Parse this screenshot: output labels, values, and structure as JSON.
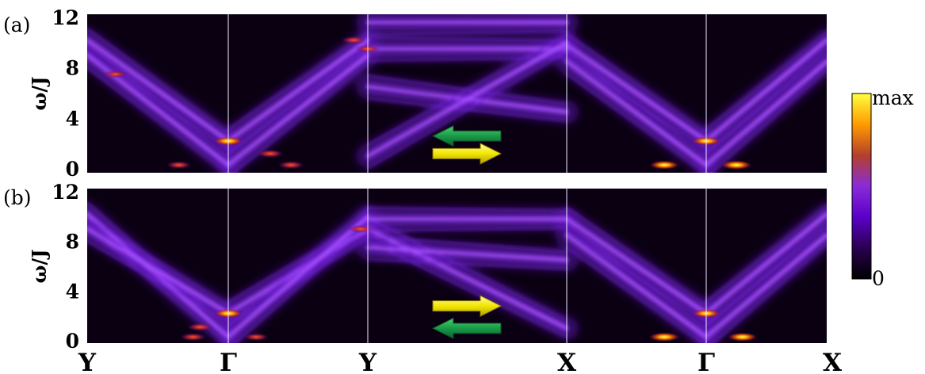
{
  "chart_data": [
    {
      "type": "heatmap",
      "panel_label": "(a)",
      "ylabel": "ω/J",
      "yticks": [
        0,
        4,
        8,
        12
      ],
      "ylim": [
        0,
        12
      ],
      "x_points": [
        "Y",
        "Γ",
        "Y",
        "X",
        "Γ",
        "X"
      ],
      "branches": [
        {
          "from": 0,
          "to": 1,
          "w": [
            9.0,
            0.3
          ]
        },
        {
          "from": 0,
          "to": 1,
          "w": [
            10.2,
            2.2
          ]
        },
        {
          "from": 1,
          "to": 2,
          "w": [
            2.2,
            10.2
          ]
        },
        {
          "from": 1,
          "to": 2,
          "w": [
            0.3,
            9.0
          ]
        },
        {
          "from": 2,
          "to": 3,
          "w": [
            11.6,
            11.6
          ]
        },
        {
          "from": 2,
          "to": 3,
          "w": [
            9.5,
            9.5
          ]
        },
        {
          "from": 2,
          "to": 3,
          "w": [
            6.5,
            4.5
          ]
        },
        {
          "from": 2,
          "to": 3,
          "w": [
            1.0,
            10.0
          ]
        },
        {
          "from": 3,
          "to": 4,
          "w": [
            9.8,
            2.2
          ]
        },
        {
          "from": 3,
          "to": 4,
          "w": [
            8.5,
            0.3
          ]
        },
        {
          "from": 4,
          "to": 5,
          "w": [
            2.2,
            10.2
          ]
        },
        {
          "from": 4,
          "to": 5,
          "w": [
            0.3,
            8.5
          ]
        }
      ],
      "hotspots": [
        {
          "k": 1.0,
          "w": 2.2,
          "level": 0.85
        },
        {
          "k": 1.3,
          "w": 1.2,
          "level": 0.6
        },
        {
          "k": 1.45,
          "w": 0.3,
          "level": 0.55
        },
        {
          "k": 0.65,
          "w": 0.3,
          "level": 0.45
        },
        {
          "k": 4.0,
          "w": 2.2,
          "level": 0.8
        },
        {
          "k": 3.7,
          "w": 0.3,
          "level": 0.85
        },
        {
          "k": 4.25,
          "w": 0.3,
          "level": 0.95
        },
        {
          "k": 0.2,
          "w": 7.5,
          "level": 0.4
        },
        {
          "k": 1.9,
          "w": 10.2,
          "level": 0.45
        },
        {
          "k": 2.0,
          "w": 9.5,
          "level": 0.4
        }
      ],
      "arrows": [
        {
          "direction": "left",
          "color": "green",
          "w": 2.6
        },
        {
          "direction": "right",
          "color": "yellow",
          "w": 1.2
        }
      ]
    },
    {
      "type": "heatmap",
      "panel_label": "(b)",
      "ylabel": "ω/J",
      "yticks": [
        0,
        4,
        8,
        12
      ],
      "ylim": [
        0,
        12
      ],
      "x_points": [
        "Y",
        "Γ",
        "Y",
        "X",
        "Γ",
        "X"
      ],
      "branches": [
        {
          "from": 0,
          "to": 1,
          "w": [
            10.2,
            0.3
          ]
        },
        {
          "from": 0,
          "to": 1,
          "w": [
            9.0,
            2.2
          ]
        },
        {
          "from": 1,
          "to": 2,
          "w": [
            2.2,
            9.0
          ]
        },
        {
          "from": 1,
          "to": 2,
          "w": [
            0.3,
            10.0
          ]
        },
        {
          "from": 2,
          "to": 3,
          "w": [
            9.0,
            1.0
          ]
        },
        {
          "from": 2,
          "to": 3,
          "w": [
            9.8,
            9.8
          ]
        },
        {
          "from": 2,
          "to": 3,
          "w": [
            7.5,
            6.5
          ]
        },
        {
          "from": 3,
          "to": 4,
          "w": [
            9.8,
            2.2
          ]
        },
        {
          "from": 3,
          "to": 4,
          "w": [
            8.5,
            0.3
          ]
        },
        {
          "from": 4,
          "to": 5,
          "w": [
            2.2,
            10.2
          ]
        },
        {
          "from": 4,
          "to": 5,
          "w": [
            0.3,
            8.5
          ]
        }
      ],
      "hotspots": [
        {
          "k": 1.0,
          "w": 2.2,
          "level": 0.8
        },
        {
          "k": 0.8,
          "w": 1.1,
          "level": 0.55
        },
        {
          "k": 0.75,
          "w": 0.3,
          "level": 0.55
        },
        {
          "k": 1.2,
          "w": 0.3,
          "level": 0.45
        },
        {
          "k": 1.95,
          "w": 9.0,
          "level": 0.5
        },
        {
          "k": 4.0,
          "w": 2.2,
          "level": 0.75
        },
        {
          "k": 3.7,
          "w": 0.3,
          "level": 0.95
        },
        {
          "k": 4.3,
          "w": 0.3,
          "level": 0.85
        }
      ],
      "arrows": [
        {
          "direction": "right",
          "color": "yellow",
          "w": 2.8
        },
        {
          "direction": "left",
          "color": "green",
          "w": 1.0
        }
      ]
    }
  ],
  "colorbar": {
    "max_label": "max",
    "min_label": "0",
    "stops": [
      "#000000",
      "#2a0050",
      "#5a00c8",
      "#8a2bd8",
      "#b4402a",
      "#ff9a00",
      "#ffff40"
    ]
  }
}
